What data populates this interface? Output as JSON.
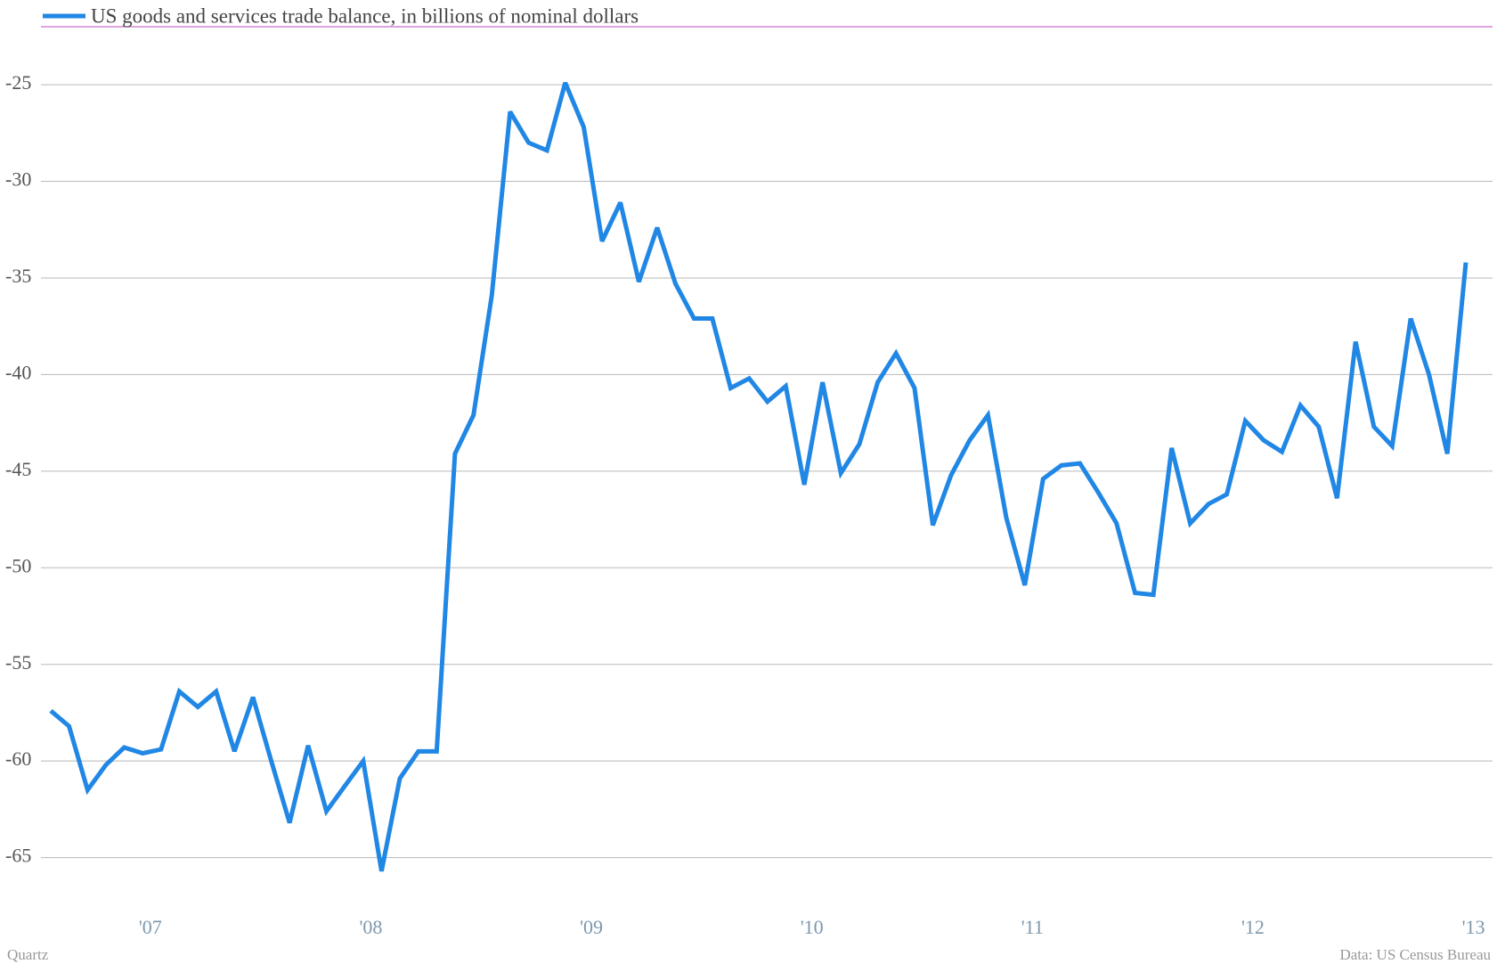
{
  "chart_data": {
    "type": "line",
    "title": "US goods and services trade balance, in billions of nominal dollars",
    "source": "Data: US Census Bureau",
    "credit": "Quartz",
    "x": [
      2006.5,
      2006.583,
      2006.667,
      2006.75,
      2006.833,
      2006.917,
      2007,
      2007.083,
      2007.167,
      2007.25,
      2007.333,
      2007.417,
      2007.5,
      2007.583,
      2007.667,
      2007.75,
      2007.833,
      2007.917,
      2008,
      2008.083,
      2008.167,
      2008.25,
      2008.333,
      2008.417,
      2008.5,
      2008.583,
      2008.667,
      2008.75,
      2008.833,
      2008.917,
      2009,
      2009.083,
      2009.167,
      2009.25,
      2009.333,
      2009.417,
      2009.5,
      2009.583,
      2009.667,
      2009.75,
      2009.833,
      2009.917,
      2010,
      2010.083,
      2010.167,
      2010.25,
      2010.333,
      2010.417,
      2010.5,
      2010.583,
      2010.667,
      2010.75,
      2010.833,
      2010.917,
      2011,
      2011.083,
      2011.167,
      2011.25,
      2011.333,
      2011.417,
      2011.5,
      2011.583,
      2011.667,
      2011.75,
      2011.833,
      2011.917,
      2012,
      2012.083,
      2012.167,
      2012.25,
      2012.333,
      2012.417,
      2012.5,
      2012.583,
      2012.667,
      2012.75,
      2012.833,
      2012.917
    ],
    "series": [
      {
        "name": "US goods and services trade balance, in billions of nominal dollars",
        "color": "#2187e4",
        "values": [
          -57.4,
          -58.2,
          -61.5,
          -60.2,
          -59.3,
          -59.6,
          -59.4,
          -56.4,
          -57.2,
          -56.4,
          -59.5,
          -56.7,
          -60.0,
          -63.2,
          -59.2,
          -62.6,
          -61.3,
          -60.0,
          -65.7,
          -60.9,
          -59.5,
          -59.5,
          -44.1,
          -42.1,
          -35.9,
          -26.4,
          -28.0,
          -28.4,
          -24.9,
          -27.2,
          -33.1,
          -31.1,
          -35.2,
          -32.4,
          -35.3,
          -37.1,
          -37.1,
          -40.7,
          -40.2,
          -41.4,
          -40.6,
          -45.7,
          -40.4,
          -45.1,
          -43.6,
          -40.4,
          -38.9,
          -40.7,
          -47.8,
          -45.2,
          -43.4,
          -42.1,
          -47.4,
          -50.9,
          -45.4,
          -44.7,
          -44.6,
          -46.1,
          -47.7,
          -51.3,
          -51.4,
          -43.8,
          -47.7,
          -46.7,
          -46.2,
          -42.4,
          -43.4,
          -44.0,
          -41.6,
          -42.7,
          -46.4,
          -38.3,
          -42.7,
          -43.7,
          -37.1,
          -40.0,
          -44.1,
          -34.2
        ]
      }
    ],
    "xlim": [
      2006.5,
      2012.917
    ],
    "xticks": [
      {
        "value": 2007,
        "label": "'07"
      },
      {
        "value": 2008,
        "label": "'08"
      },
      {
        "value": 2009,
        "label": "'09"
      },
      {
        "value": 2010,
        "label": "'10"
      },
      {
        "value": 2011,
        "label": "'11"
      },
      {
        "value": 2012,
        "label": "'12"
      },
      {
        "value": 2013,
        "label": "'13"
      }
    ],
    "ylim": [
      -67,
      -22
    ],
    "yticks": [
      -25,
      -30,
      -35,
      -40,
      -45,
      -50,
      -55,
      -60,
      -65
    ],
    "grid": true
  }
}
